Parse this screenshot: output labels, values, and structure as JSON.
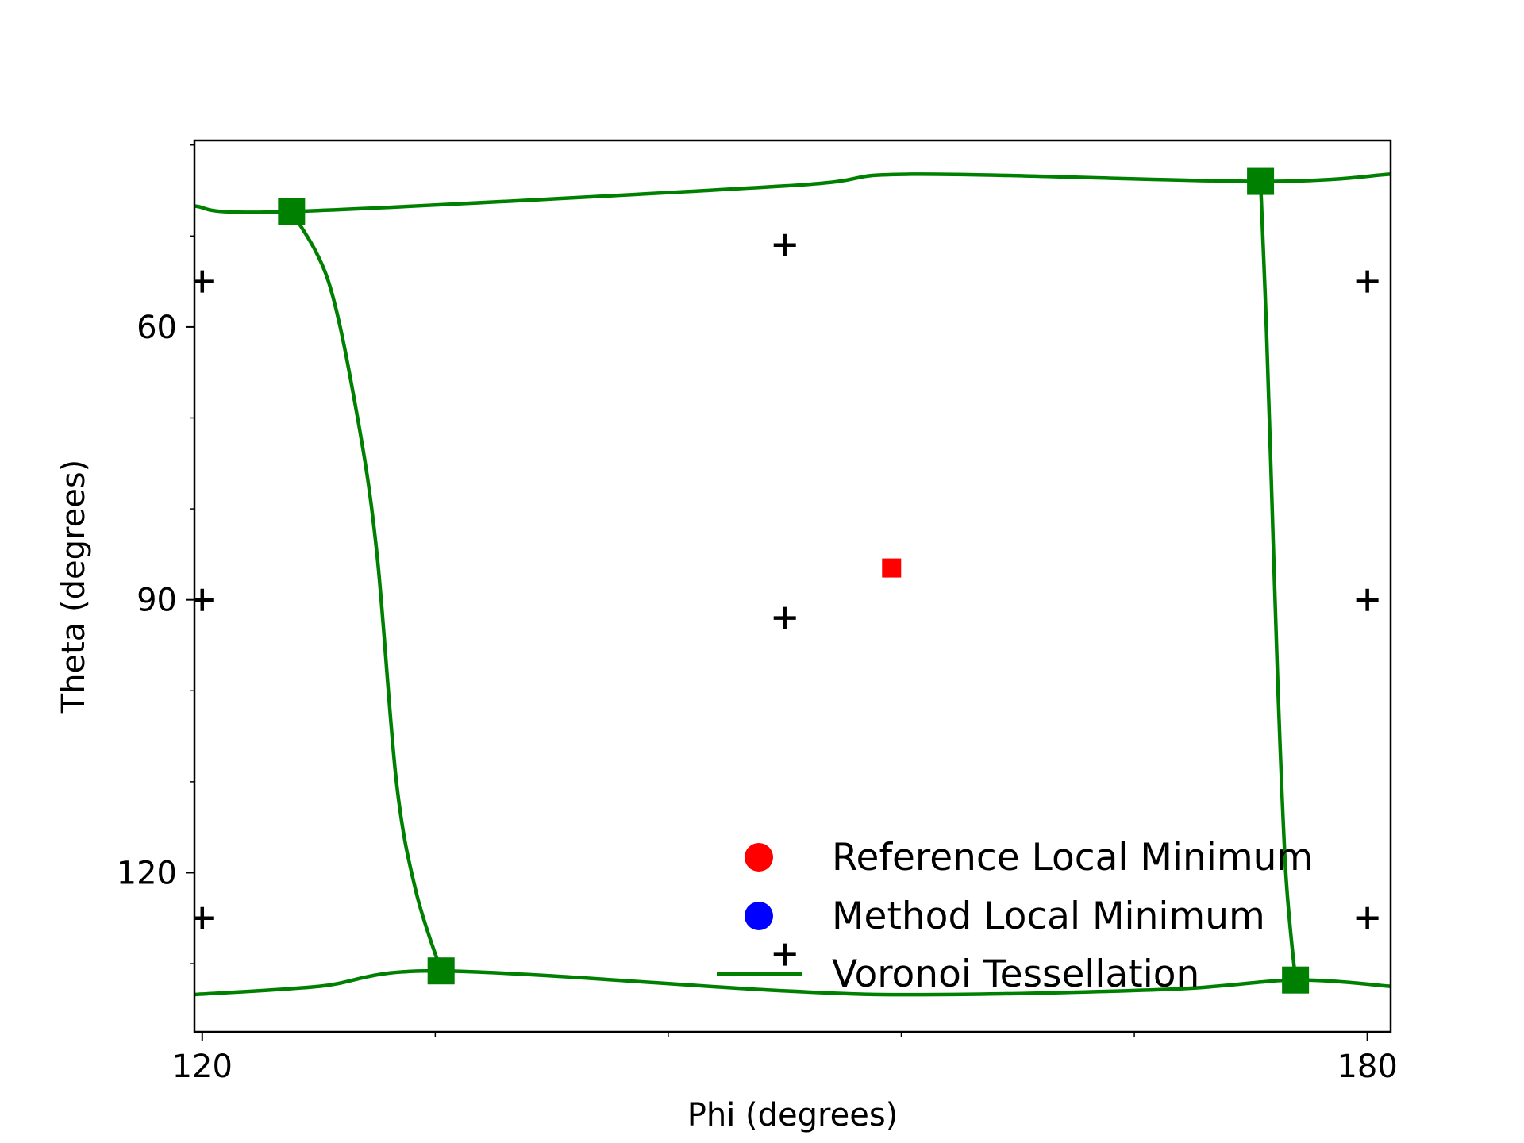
{
  "chart_data": {
    "type": "scatter",
    "title": "",
    "xlabel": "Phi (degrees)",
    "ylabel": "Theta (degrees)",
    "xlim": [
      119.6,
      181.2
    ],
    "ylim": [
      39.5,
      137.5
    ],
    "y_inverted": true,
    "x_ticks": [
      120,
      180
    ],
    "x_minor_ticks": [
      132,
      144,
      156,
      168
    ],
    "y_ticks": [
      60,
      90,
      120
    ],
    "y_minor_ticks": [
      40,
      50,
      70,
      80,
      100,
      110,
      130
    ],
    "grid": false,
    "legend_placement": "lower-right",
    "legend": [
      {
        "label": "Reference Local Minimum",
        "marker": "circle",
        "color": "#ff0000"
      },
      {
        "label": "Method Local Minimum",
        "marker": "circle",
        "color": "#0000ff"
      },
      {
        "label": "Voronoi Tessellation",
        "marker": "line",
        "color": "#008000"
      }
    ],
    "series": [
      {
        "role": "reference-minimum",
        "marker": "square",
        "color": "#ff0000",
        "points": [
          [
            155.5,
            86.5
          ]
        ]
      },
      {
        "role": "sample-points",
        "marker": "plus",
        "color": "#000000",
        "points": [
          [
            120,
            55
          ],
          [
            120,
            90
          ],
          [
            120,
            125
          ],
          [
            150,
            51
          ],
          [
            150,
            92
          ],
          [
            150,
            129
          ],
          [
            180,
            55
          ],
          [
            180,
            90
          ],
          [
            180,
            125
          ]
        ]
      },
      {
        "role": "voronoi-vertices",
        "marker": "square",
        "color": "#008000",
        "points": [
          [
            124.6,
            47.3
          ],
          [
            132.3,
            130.8
          ],
          [
            174.5,
            44.0
          ],
          [
            176.3,
            131.8
          ]
        ]
      }
    ],
    "voronoi_edges": [
      {
        "points": [
          [
            119.6,
            46.7
          ],
          [
            124.6,
            47.3
          ],
          [
            150,
            44.5
          ],
          [
            156.5,
            43.2
          ],
          [
            174.5,
            44.0
          ],
          [
            181.2,
            43.2
          ]
        ]
      },
      {
        "points": [
          [
            119.6,
            133.4
          ],
          [
            126,
            132.5
          ],
          [
            132.3,
            130.8
          ],
          [
            150,
            133.0
          ],
          [
            158,
            133.4
          ],
          [
            170,
            132.8
          ],
          [
            176.3,
            131.8
          ],
          [
            181.2,
            132.5
          ]
        ]
      },
      {
        "points": [
          [
            124.6,
            47.3
          ],
          [
            126.5,
            55
          ],
          [
            128,
            70
          ],
          [
            129,
            85
          ],
          [
            130,
            110
          ],
          [
            131,
            122
          ],
          [
            132.3,
            130.8
          ]
        ]
      },
      {
        "points": [
          [
            174.5,
            44.0
          ],
          [
            174.8,
            60
          ],
          [
            175.1,
            80
          ],
          [
            175.4,
            100
          ],
          [
            175.8,
            120
          ],
          [
            176.3,
            131.8
          ]
        ]
      }
    ]
  }
}
